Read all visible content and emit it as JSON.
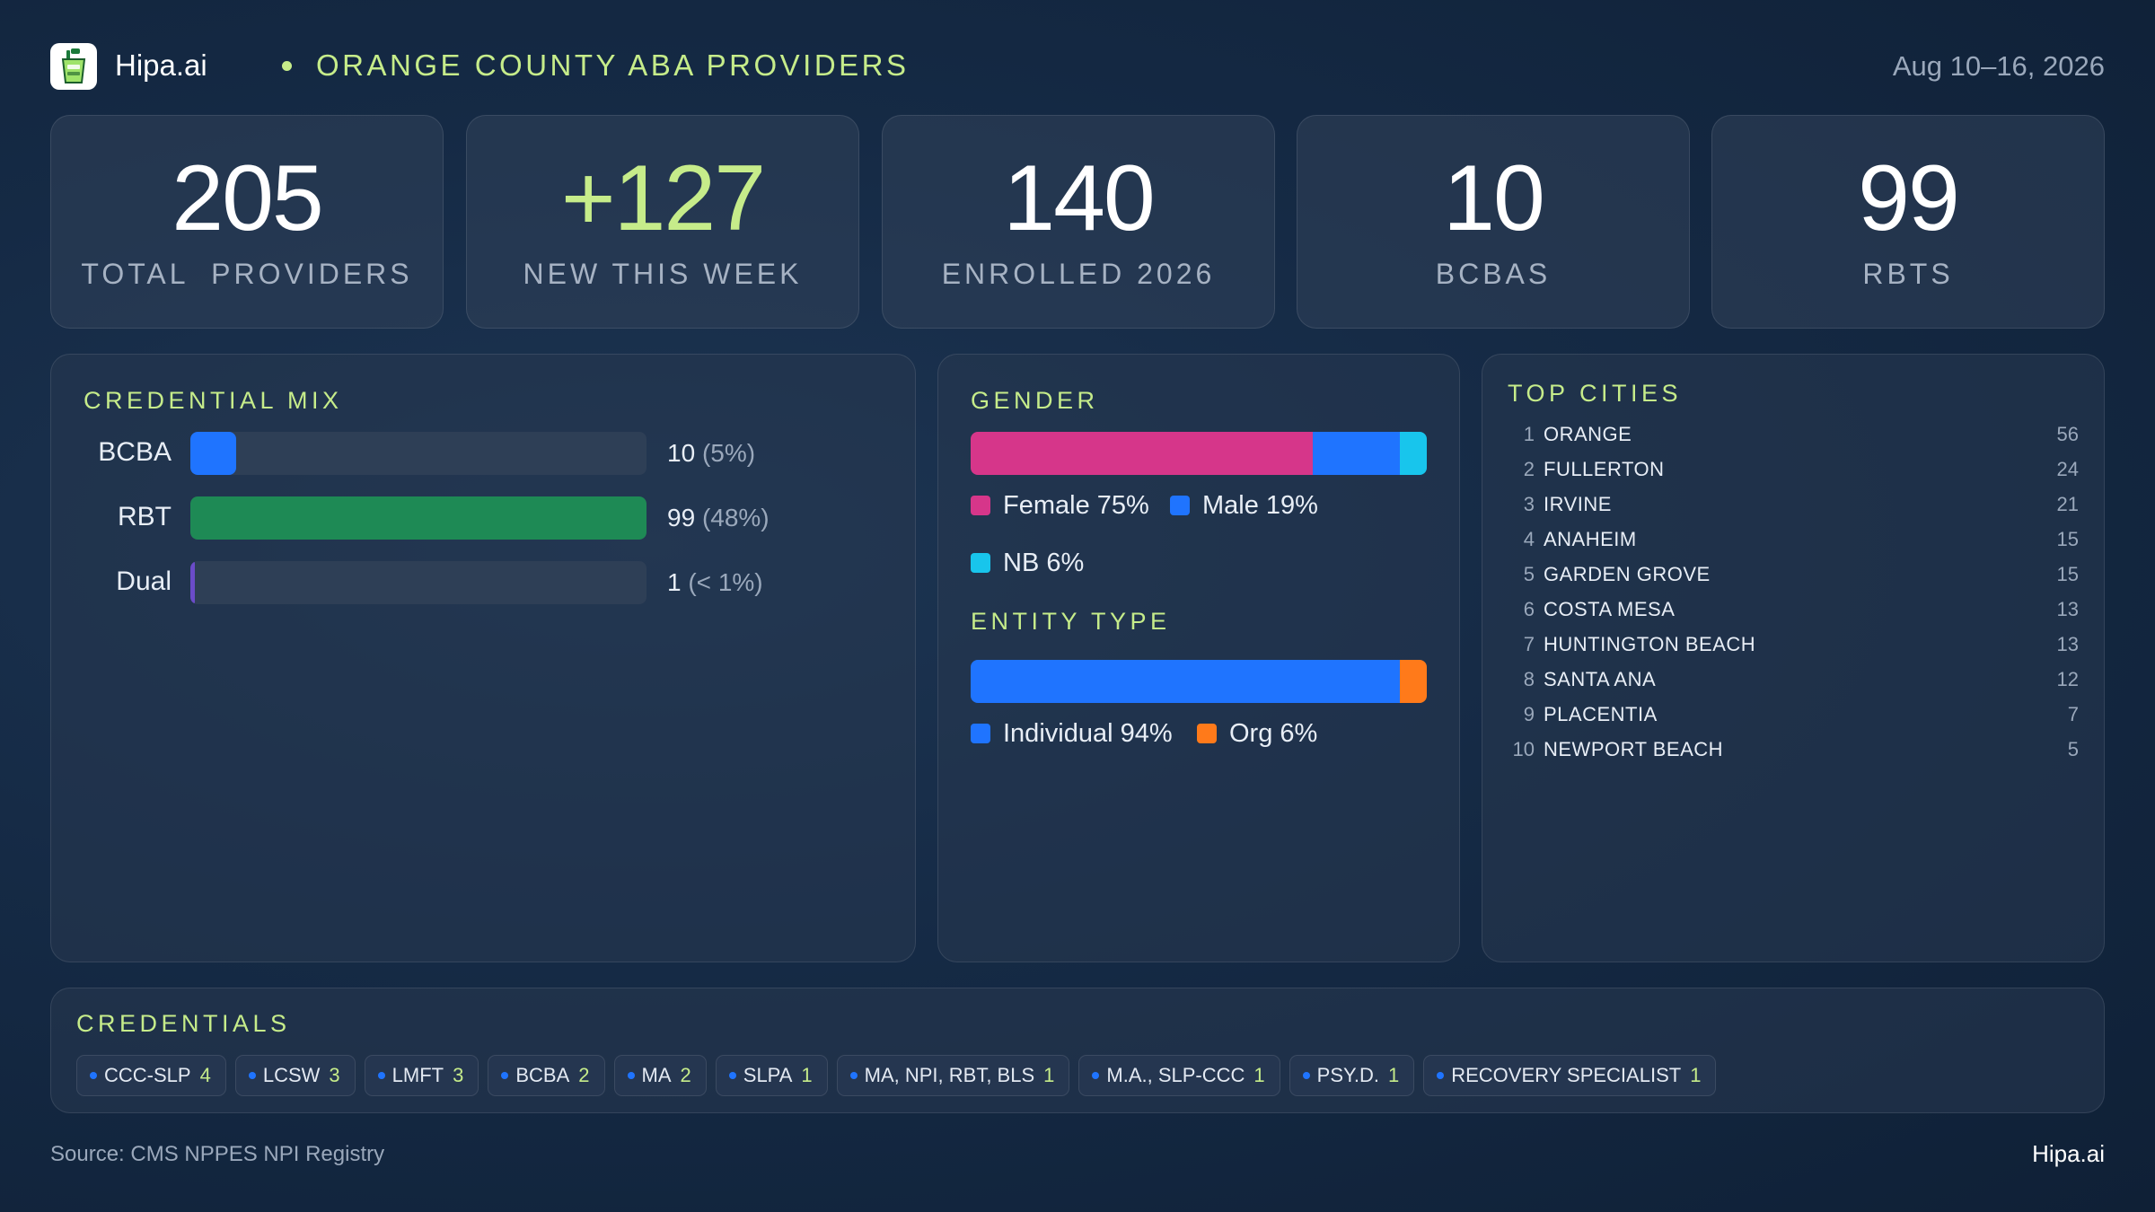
{
  "header": {
    "brand": "Hipa.ai",
    "title": "ORANGE COUNTY ABA PROVIDERS",
    "date_range": "Aug 10–16, 2026",
    "logo_icon": "drink-cup-icon"
  },
  "stats": [
    {
      "value": "205",
      "label": "TOTAL  PROVIDERS"
    },
    {
      "value": "+127",
      "label": "NEW THIS WEEK",
      "accent": "#c6ec8a"
    },
    {
      "value": "140",
      "label": "ENROLLED 2026"
    },
    {
      "value": "10",
      "label": "BCBAS"
    },
    {
      "value": "99",
      "label": "RBTS"
    }
  ],
  "credential_mix": {
    "title": "CREDENTIAL MIX",
    "rows": [
      {
        "label": "BCBA",
        "value": "10",
        "pct": "(5%)",
        "fraction": 0.1,
        "color": "#1f74ff"
      },
      {
        "label": "RBT",
        "value": "99",
        "pct": "(48%)",
        "fraction": 1.0,
        "color": "#1e8a55"
      },
      {
        "label": "Dual",
        "value": "1",
        "pct": "(< 1%)",
        "fraction": 0.01,
        "color": "#6b4cc9"
      }
    ]
  },
  "gender": {
    "title": "GENDER",
    "segments": [
      {
        "label": "Female 75%",
        "fraction": 0.75,
        "color": "#d6368a"
      },
      {
        "label": "Male 19%",
        "fraction": 0.19,
        "color": "#1f74ff"
      },
      {
        "label": "NB 6%",
        "fraction": 0.06,
        "color": "#18c5ec"
      }
    ]
  },
  "entity_type": {
    "title": "ENTITY TYPE",
    "segments": [
      {
        "label": "Individual 94%",
        "fraction": 0.94,
        "color": "#1f74ff"
      },
      {
        "label": "Org 6%",
        "fraction": 0.06,
        "color": "#ff7a1a"
      }
    ]
  },
  "top_cities": {
    "title": "TOP CITIES",
    "rows": [
      {
        "rank": "1",
        "name": "ORANGE",
        "count": "56"
      },
      {
        "rank": "2",
        "name": "FULLERTON",
        "count": "24"
      },
      {
        "rank": "3",
        "name": "IRVINE",
        "count": "21"
      },
      {
        "rank": "4",
        "name": "ANAHEIM",
        "count": "15"
      },
      {
        "rank": "5",
        "name": "GARDEN GROVE",
        "count": "15"
      },
      {
        "rank": "6",
        "name": "COSTA MESA",
        "count": "13"
      },
      {
        "rank": "7",
        "name": "HUNTINGTON BEACH",
        "count": "13"
      },
      {
        "rank": "8",
        "name": "SANTA ANA",
        "count": "12"
      },
      {
        "rank": "9",
        "name": "PLACENTIA",
        "count": "7"
      },
      {
        "rank": "10",
        "name": "NEWPORT BEACH",
        "count": "5"
      }
    ]
  },
  "credentials": {
    "title": "CREDENTIALS",
    "chips": [
      {
        "label": "CCC-SLP",
        "count": "4"
      },
      {
        "label": "LCSW",
        "count": "3"
      },
      {
        "label": "LMFT",
        "count": "3"
      },
      {
        "label": "BCBA",
        "count": "2"
      },
      {
        "label": "MA",
        "count": "2"
      },
      {
        "label": "SLPA",
        "count": "1"
      },
      {
        "label": "MA, NPI, RBT, BLS",
        "count": "1"
      },
      {
        "label": "M.A., SLP-CCC",
        "count": "1"
      },
      {
        "label": "PSY.D.",
        "count": "1"
      },
      {
        "label": "RECOVERY SPECIALIST",
        "count": "1"
      }
    ]
  },
  "footer": {
    "source": "Source: CMS NPPES NPI Registry",
    "brand": "Hipa.ai"
  }
}
